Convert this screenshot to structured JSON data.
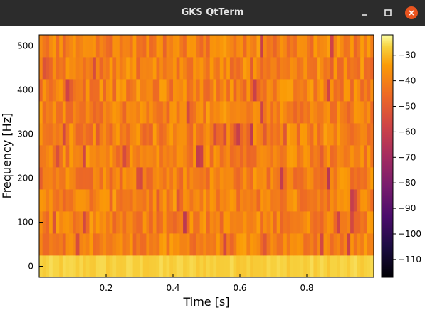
{
  "window": {
    "title": "GKS QtTerm",
    "controls": {
      "minimize_icon": "minimize-icon",
      "maximize_icon": "maximize-icon",
      "close_icon": "close-icon"
    },
    "close_color": "#e9541f"
  },
  "chart_data": {
    "type": "heatmap",
    "title": "",
    "xlabel": "Time [s]",
    "ylabel": "Frequency [Hz]",
    "xlim": [
      0.0,
      1.0
    ],
    "ylim": [
      -25,
      525
    ],
    "x_ticks": [
      "0.2",
      "0.4",
      "0.6",
      "0.8"
    ],
    "y_ticks": [
      "0",
      "100",
      "200",
      "300",
      "400",
      "500"
    ],
    "colorscale": "inferno",
    "colorbar": {
      "range": [
        -117,
        -22
      ],
      "ticks": [
        "−30",
        "−40",
        "−50",
        "−60",
        "−70",
        "−80",
        "−90",
        "−100",
        "−110"
      ]
    },
    "grid": false,
    "frequency_rows": [
      0,
      50,
      100,
      150,
      200,
      250,
      300,
      350,
      400,
      450,
      500
    ],
    "time_bins": 100,
    "dc_row_level_db": -27,
    "typical_level_db": -40,
    "min_level_db": -117,
    "min_point": {
      "time": 0.53,
      "frequency": 500
    }
  }
}
